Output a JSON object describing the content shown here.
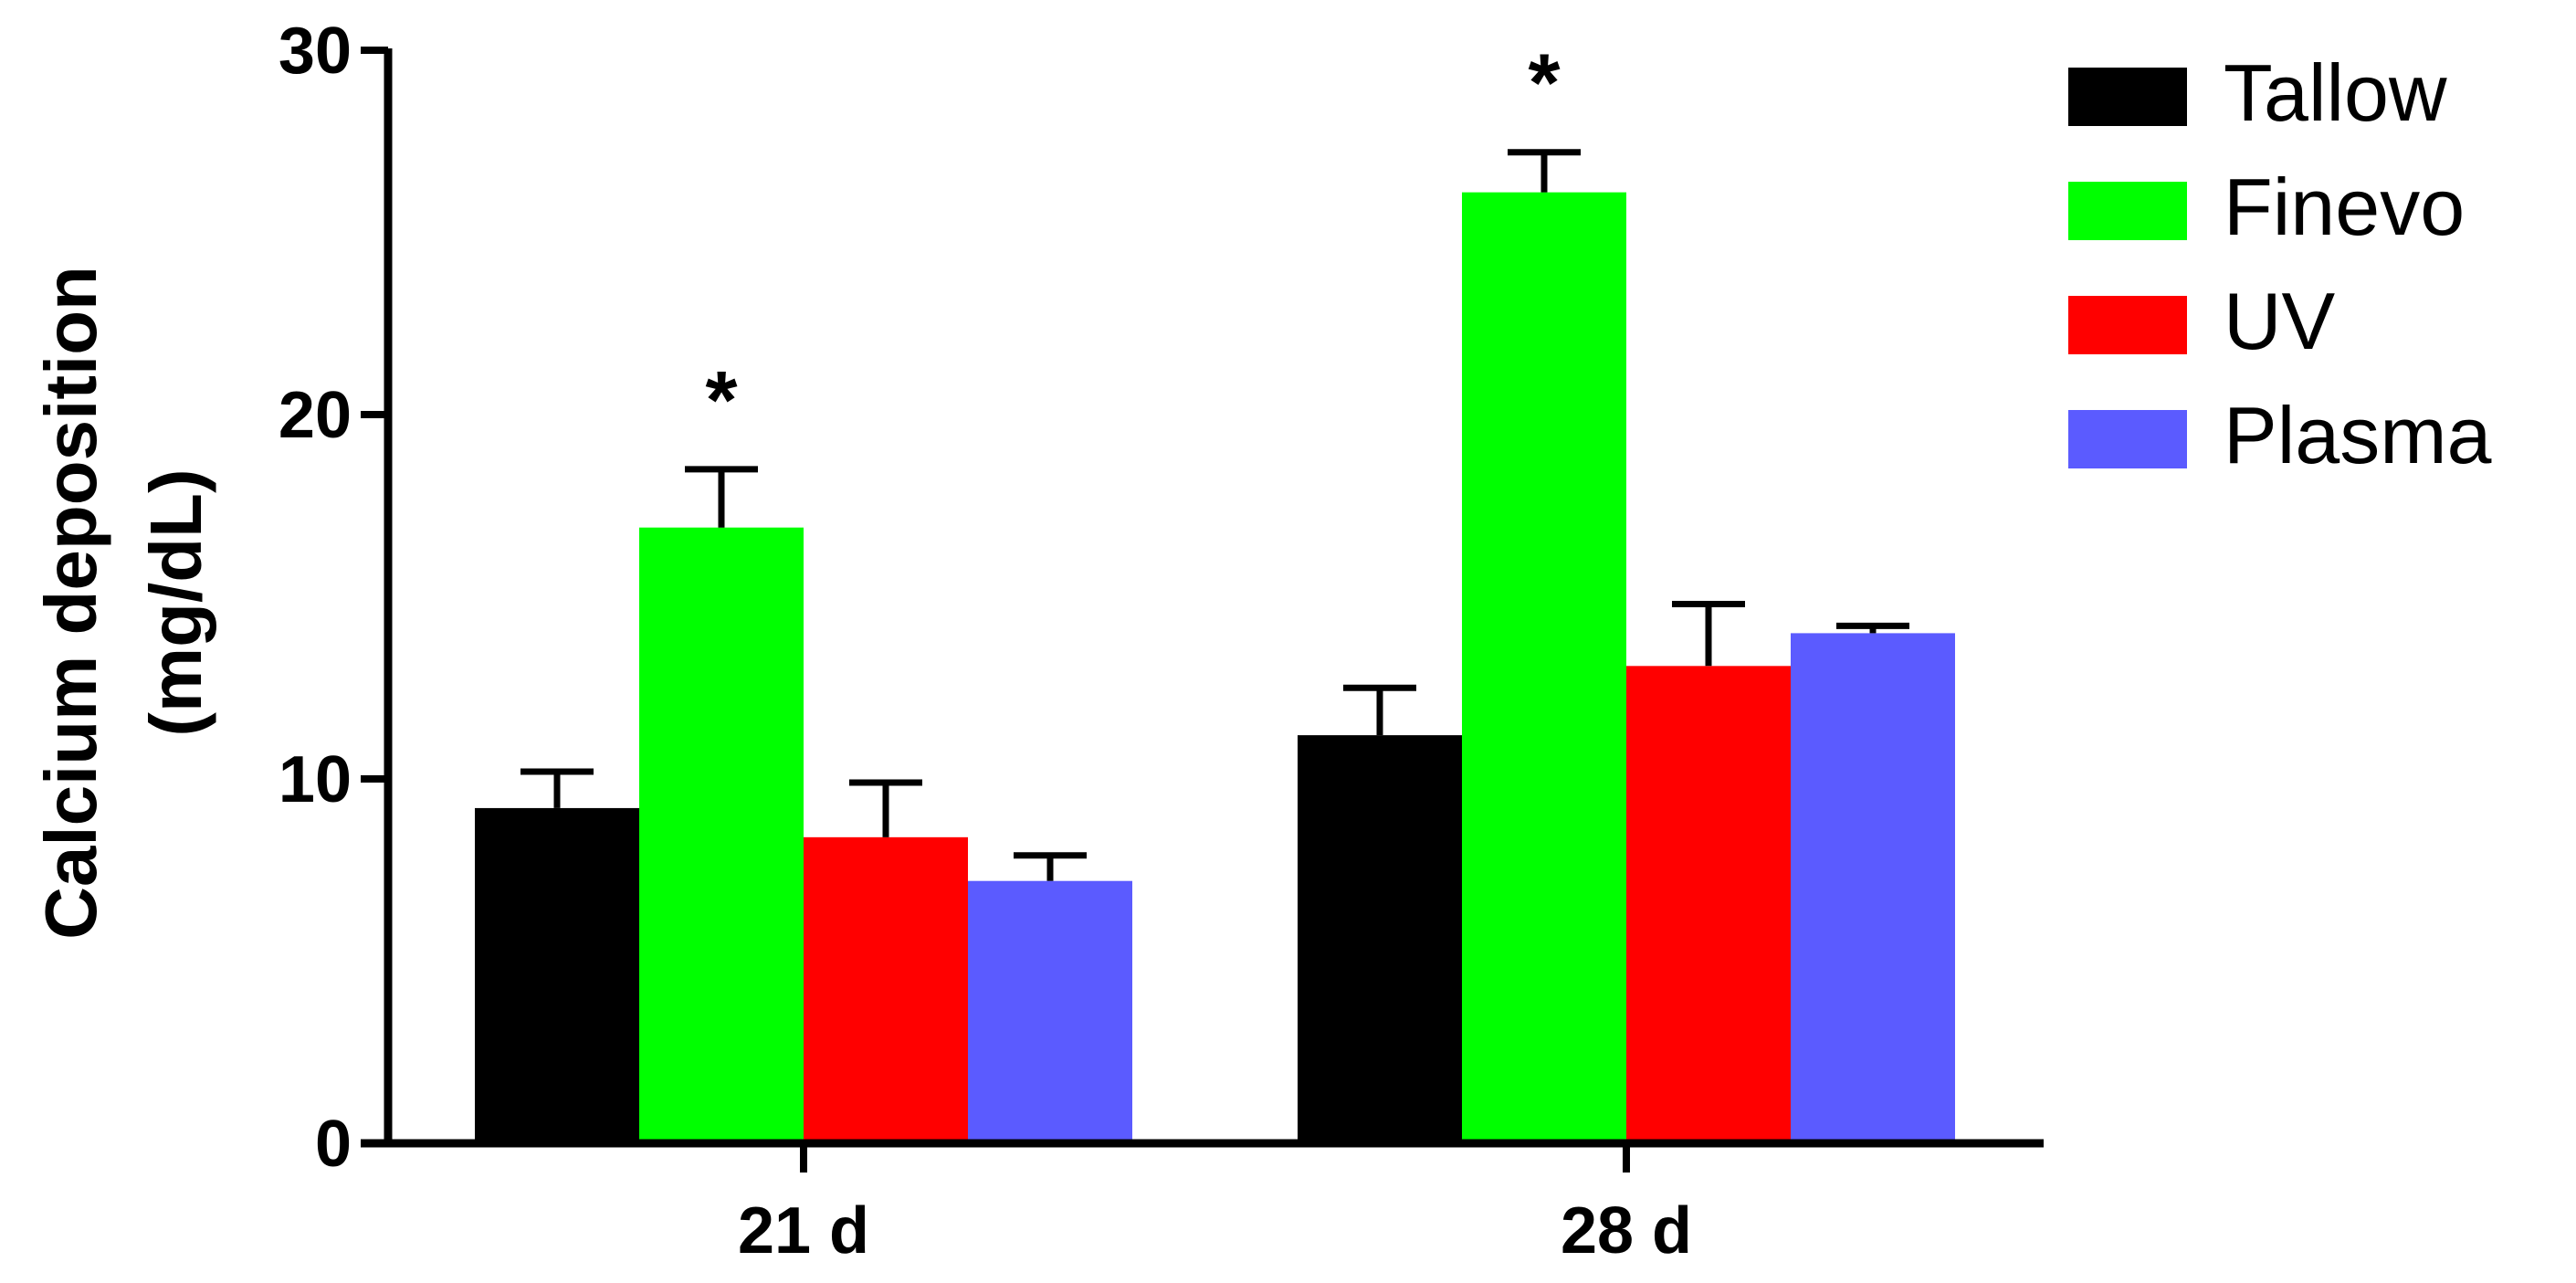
{
  "chart_data": {
    "type": "bar",
    "title": "",
    "xlabel": "",
    "ylabel_lines": [
      "Calcium deposition",
      "(mg/dL)"
    ],
    "ylim": [
      0,
      30
    ],
    "yticks": [
      0,
      10,
      20,
      30
    ],
    "categories": [
      "21 d",
      "28 d"
    ],
    "series": [
      {
        "name": "Tallow",
        "color": "#000000",
        "values": [
          9.2,
          11.2
        ],
        "errors": [
          1.0,
          1.3
        ]
      },
      {
        "name": "Finevo",
        "color": "#00ff00",
        "values": [
          16.9,
          26.1
        ],
        "errors": [
          1.6,
          1.1
        ]
      },
      {
        "name": "UV",
        "color": "#ff0000",
        "values": [
          8.4,
          13.1
        ],
        "errors": [
          1.5,
          1.7
        ]
      },
      {
        "name": "Plasma",
        "color": "#5b5bff",
        "values": [
          7.2,
          14.0
        ],
        "errors": [
          0.7,
          0.2
        ]
      }
    ],
    "annotations": [
      {
        "category": "21 d",
        "series": "Finevo",
        "text": "*"
      },
      {
        "category": "28 d",
        "series": "Finevo",
        "text": "*"
      }
    ],
    "legend_position": "top-right",
    "grid": false
  }
}
